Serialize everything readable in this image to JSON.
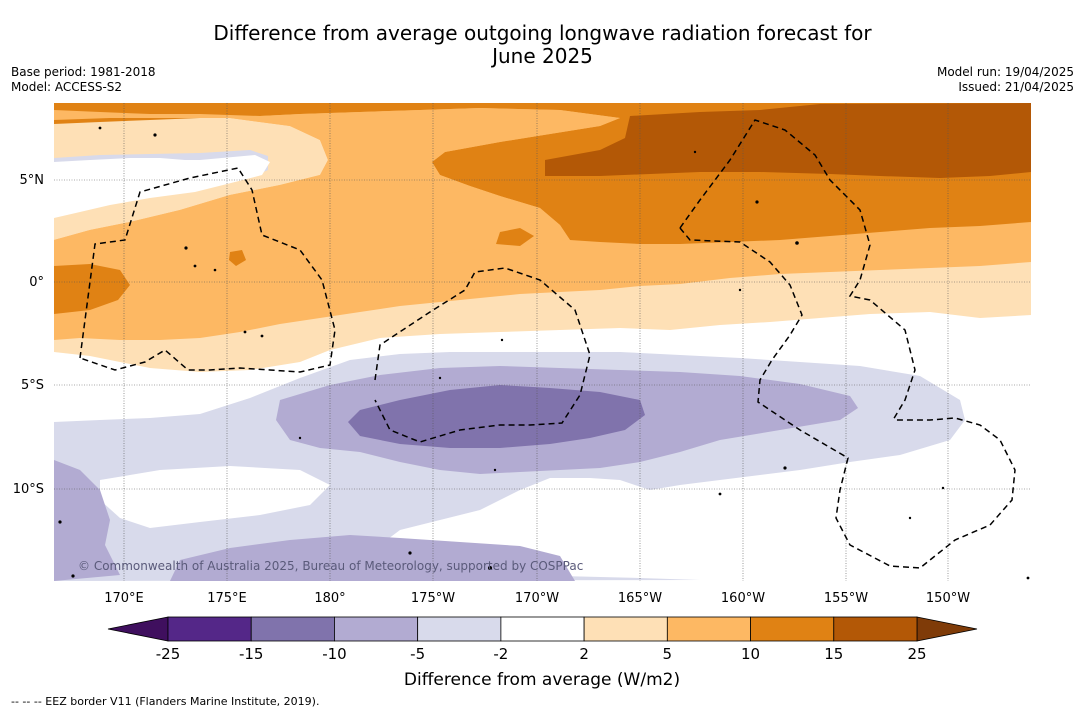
{
  "header": {
    "title_line1": "Difference from average outgoing longwave radiation forecast for",
    "title_line2": "June 2025",
    "base_period": "Base period: 1981-2018",
    "model": "Model: ACCESS-S2",
    "model_run": "Model run: 19/04/2025",
    "issued": "Issued: 21/04/2025"
  },
  "map": {
    "lat_labels": [
      "5°N",
      "0°",
      "5°S",
      "10°S"
    ],
    "lon_labels": [
      "170°E",
      "175°E",
      "180°",
      "175°W",
      "170°W",
      "165°W",
      "160°W",
      "155°W",
      "150°W"
    ],
    "copyright": "© Commonwealth of Australia 2025, Bureau of Meteorology, supported by COSPPac"
  },
  "colorbar": {
    "ticks": [
      "-25",
      "-15",
      "-10",
      "-5",
      "-2",
      "2",
      "5",
      "10",
      "15",
      "25"
    ],
    "colors": [
      "#3f0f5e",
      "#542788",
      "#8073ac",
      "#b2abd2",
      "#d8daeb",
      "#ffffff",
      "#fee0b6",
      "#fdb863",
      "#e08214",
      "#b35806",
      "#7f3b08"
    ],
    "label": "Difference from average (W/m2)"
  },
  "footer": {
    "legend_text": "--  --  -- EEZ border V11 (Flanders Marine Institute, 2019)."
  }
}
